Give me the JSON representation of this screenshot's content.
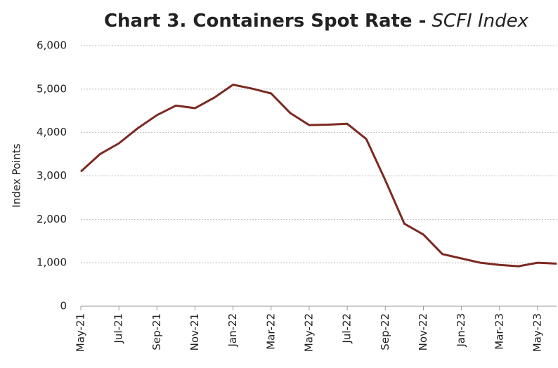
{
  "chart_data": {
    "type": "line",
    "title": "Chart 3. Containers Spot Rate -",
    "title_italic": "SCFI Index",
    "y_label": "Index Points",
    "categories": [
      "May-21",
      null,
      "Jul-21",
      null,
      "Sep-21",
      null,
      "Nov-21",
      null,
      "Jan-22",
      null,
      "Mar-22",
      null,
      "May-22",
      null,
      "Jul-22",
      null,
      "Sep-22",
      null,
      "Nov-22",
      null,
      "Jan-23",
      null,
      "Mar-23",
      null,
      "May-23",
      null
    ],
    "series": [
      {
        "name": "SCFI Index",
        "color": "#7b2a22",
        "values": [
          3100,
          3500,
          3750,
          4100,
          4400,
          4620,
          4560,
          4800,
          5100,
          5010,
          4900,
          4450,
          4170,
          4180,
          4200,
          3850,
          2900,
          1900,
          1650,
          1200,
          1100,
          1000,
          950,
          920,
          1000,
          980
        ]
      }
    ],
    "ylim": [
      0,
      6000
    ],
    "yticks": [
      0,
      {
        "value": 1000,
        "label": "1,000"
      },
      {
        "value": 2000,
        "label": "2,000"
      },
      {
        "value": 3000,
        "label": "3,000"
      },
      {
        "value": 4000,
        "label": "4,000"
      },
      {
        "value": 5000,
        "label": "5,000"
      },
      {
        "value": 6000,
        "label": "6,000"
      }
    ],
    "grid": true
  }
}
